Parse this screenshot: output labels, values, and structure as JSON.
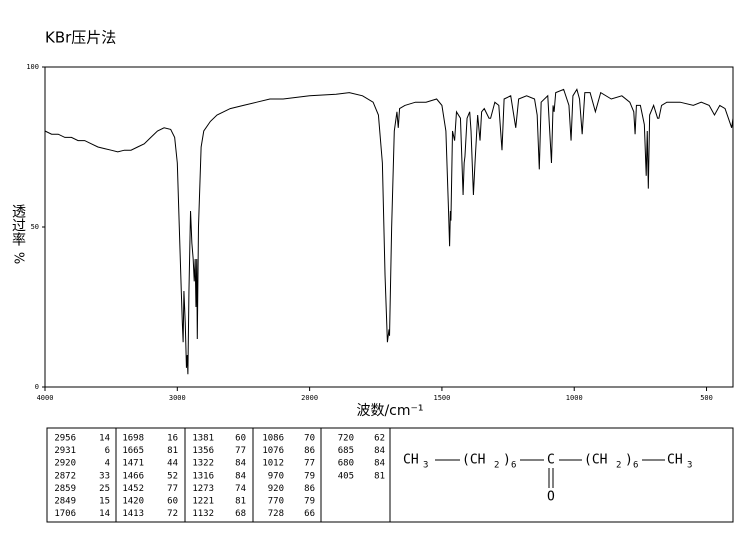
{
  "chart_data": {
    "type": "line",
    "title": "KBr压片法",
    "y_label": "透过率",
    "y_unit": "%",
    "x_label": "波数/cm⁻¹",
    "xlim": [
      4000,
      400
    ],
    "xbreak": 2000,
    "xticks": [
      4000,
      3000,
      2000,
      1500,
      1000,
      500
    ],
    "ylim": [
      0,
      100
    ],
    "yticks": [
      0,
      50,
      100
    ],
    "color": "#000000",
    "x": [
      4000,
      3950,
      3900,
      3850,
      3800,
      3750,
      3700,
      3650,
      3600,
      3550,
      3500,
      3450,
      3400,
      3350,
      3300,
      3250,
      3200,
      3150,
      3100,
      3050,
      3020,
      3000,
      2985,
      2970,
      2962,
      2956,
      2950,
      2940,
      2931,
      2925,
      2920,
      2912,
      2900,
      2890,
      2880,
      2872,
      2865,
      2859,
      2853,
      2849,
      2840,
      2820,
      2800,
      2750,
      2700,
      2600,
      2500,
      2400,
      2300,
      2200,
      2100,
      2000,
      1900,
      1850,
      1800,
      1760,
      1740,
      1725,
      1715,
      1706,
      1700,
      1698,
      1690,
      1680,
      1670,
      1665,
      1660,
      1640,
      1600,
      1560,
      1520,
      1500,
      1485,
      1475,
      1471,
      1468,
      1466,
      1460,
      1452,
      1445,
      1430,
      1420,
      1416,
      1413,
      1405,
      1395,
      1390,
      1381,
      1375,
      1365,
      1356,
      1350,
      1340,
      1322,
      1316,
      1300,
      1285,
      1273,
      1265,
      1240,
      1221,
      1210,
      1180,
      1150,
      1140,
      1132,
      1125,
      1100,
      1086,
      1080,
      1076,
      1070,
      1040,
      1020,
      1012,
      1005,
      990,
      980,
      970,
      960,
      940,
      920,
      900,
      860,
      820,
      790,
      775,
      770,
      765,
      750,
      735,
      728,
      724,
      720,
      715,
      700,
      685,
      680,
      670,
      650,
      600,
      550,
      520,
      490,
      470,
      450,
      430,
      405,
      400
    ],
    "values": [
      80,
      79,
      79,
      78,
      78,
      77,
      77,
      76,
      75,
      74.5,
      74,
      73.5,
      74,
      74,
      75,
      76,
      78,
      80,
      81,
      80.5,
      78,
      70,
      50,
      30,
      20,
      14,
      30,
      20,
      6,
      10,
      4,
      30,
      55,
      45,
      40,
      33,
      40,
      25,
      40,
      15,
      50,
      75,
      80,
      83,
      85,
      87,
      88,
      89,
      90,
      90,
      90.5,
      91,
      91.5,
      92,
      91,
      89,
      85,
      70,
      35,
      14,
      18,
      16,
      50,
      80,
      86,
      81,
      87,
      88,
      89,
      89,
      90,
      88,
      80,
      55,
      44,
      55,
      52,
      80,
      77,
      86,
      84,
      60,
      70,
      72,
      84,
      86,
      80,
      60,
      70,
      85,
      77,
      86,
      87,
      84,
      84,
      89,
      88,
      74,
      90,
      91,
      81,
      90,
      91,
      90,
      85,
      68,
      89,
      91,
      70,
      88,
      86,
      92,
      93,
      88,
      77,
      91,
      93,
      90,
      79,
      92,
      92,
      86,
      92,
      90,
      91,
      89,
      86,
      79,
      88,
      88,
      82,
      66,
      80,
      62,
      85,
      88,
      84,
      84,
      88,
      89,
      89,
      88,
      89,
      88,
      85,
      88,
      87,
      81,
      84
    ]
  },
  "peak_table": {
    "columns": [
      [
        [
          2956,
          14
        ],
        [
          2931,
          6
        ],
        [
          2920,
          4
        ],
        [
          2872,
          33
        ],
        [
          2859,
          25
        ],
        [
          2849,
          15
        ],
        [
          1706,
          14
        ]
      ],
      [
        [
          1698,
          16
        ],
        [
          1665,
          81
        ],
        [
          1471,
          44
        ],
        [
          1466,
          52
        ],
        [
          1452,
          77
        ],
        [
          1420,
          60
        ],
        [
          1413,
          72
        ]
      ],
      [
        [
          1381,
          60
        ],
        [
          1356,
          77
        ],
        [
          1322,
          84
        ],
        [
          1316,
          84
        ],
        [
          1273,
          74
        ],
        [
          1221,
          81
        ],
        [
          1132,
          68
        ]
      ],
      [
        [
          1086,
          70
        ],
        [
          1076,
          86
        ],
        [
          1012,
          77
        ],
        [
          970,
          79
        ],
        [
          920,
          86
        ],
        [
          770,
          79
        ],
        [
          728,
          66
        ]
      ],
      [
        [
          720,
          62
        ],
        [
          685,
          84
        ],
        [
          680,
          84
        ],
        [
          405,
          81
        ]
      ]
    ]
  },
  "structure": {
    "pieces": [
      "CH",
      "3",
      "(CH",
      "2",
      ")",
      "6",
      "C",
      "(CH",
      "2",
      ")",
      "6",
      "CH",
      "3",
      "O"
    ]
  }
}
